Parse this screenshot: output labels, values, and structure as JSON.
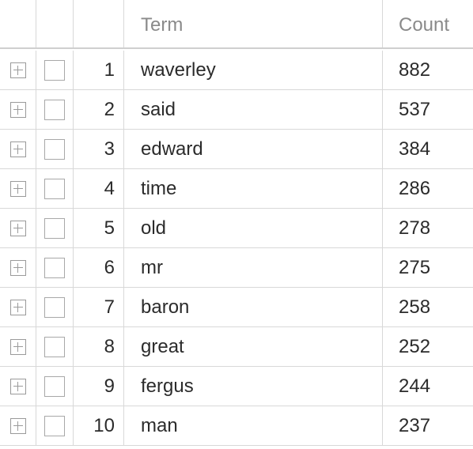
{
  "table": {
    "columns": {
      "term": "Term",
      "count": "Count"
    },
    "rows": [
      {
        "index": "1",
        "term": "waverley",
        "count": "882"
      },
      {
        "index": "2",
        "term": "said",
        "count": "537"
      },
      {
        "index": "3",
        "term": "edward",
        "count": "384"
      },
      {
        "index": "4",
        "term": "time",
        "count": "286"
      },
      {
        "index": "5",
        "term": "old",
        "count": "278"
      },
      {
        "index": "6",
        "term": "mr",
        "count": "275"
      },
      {
        "index": "7",
        "term": "baron",
        "count": "258"
      },
      {
        "index": "8",
        "term": "great",
        "count": "252"
      },
      {
        "index": "9",
        "term": "fergus",
        "count": "244"
      },
      {
        "index": "10",
        "term": "man",
        "count": "237"
      }
    ]
  },
  "icons": {
    "expander": "plus-square-icon",
    "checkbox": "checkbox-icon"
  }
}
